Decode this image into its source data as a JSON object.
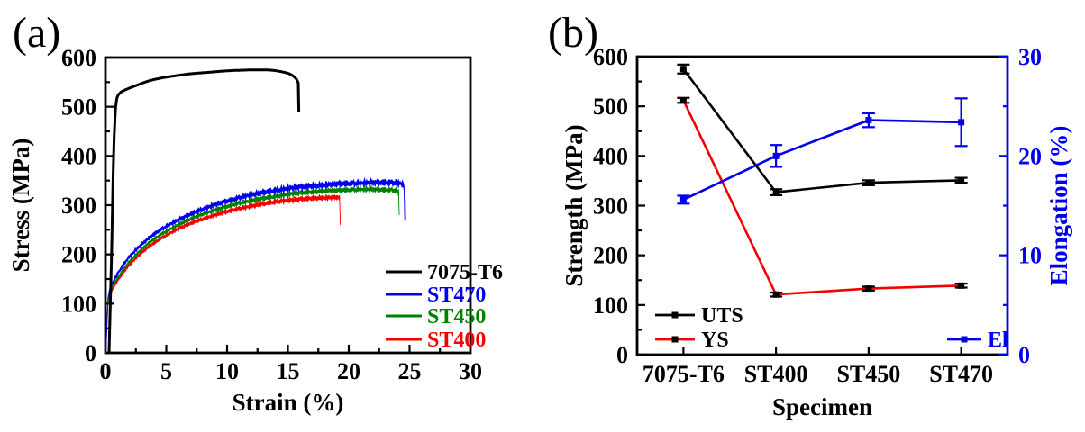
{
  "figure": {
    "background": "#ffffff",
    "colors": {
      "black": "#000000",
      "blue": "#0000ee",
      "green": "#008000",
      "red": "#f40000"
    }
  },
  "chart_data": [
    {
      "id": "a",
      "type": "line",
      "panel_label": "(a)",
      "xlabel": "Strain (%)",
      "ylabel": "Stress (MPa)",
      "xlim": [
        0,
        30
      ],
      "ylim": [
        0,
        600
      ],
      "xticks": [
        0,
        5,
        10,
        15,
        20,
        25,
        30
      ],
      "yticks": [
        0,
        100,
        200,
        300,
        400,
        500,
        600
      ],
      "x_minor_step": 2.5,
      "y_minor_step": 50,
      "grid": false,
      "legend_position": "lower right",
      "series": [
        {
          "name": "7075-T6",
          "color": "#000000",
          "noise": 0,
          "points": [
            [
              0.3,
              0
            ],
            [
              0.5,
              200
            ],
            [
              0.62,
              350
            ],
            [
              0.72,
              440
            ],
            [
              0.82,
              495
            ],
            [
              0.95,
              518
            ],
            [
              1.2,
              528
            ],
            [
              1.6,
              534
            ],
            [
              2.5,
              543
            ],
            [
              3.5,
              552
            ],
            [
              4.5,
              558
            ],
            [
              5.5,
              562
            ],
            [
              7,
              567
            ],
            [
              8.5,
              570
            ],
            [
              10,
              573
            ],
            [
              11.5,
              574.5
            ],
            [
              12.5,
              575
            ],
            [
              13.5,
              574.5
            ],
            [
              14.3,
              572
            ],
            [
              15,
              568
            ],
            [
              15.4,
              563
            ],
            [
              15.7,
              556
            ],
            [
              15.85,
              548
            ],
            [
              15.9,
              490
            ]
          ]
        },
        {
          "name": "ST470",
          "color": "#0000ee",
          "noise": 8,
          "points": [
            [
              0.05,
              0
            ],
            [
              0.12,
              60
            ],
            [
              0.2,
              110
            ],
            [
              0.35,
              128
            ],
            [
              0.6,
              143
            ],
            [
              1,
              161
            ],
            [
              1.5,
              180
            ],
            [
              2,
              196
            ],
            [
              3,
              221
            ],
            [
              4,
              241
            ],
            [
              5,
              257
            ],
            [
              6,
              270
            ],
            [
              7,
              282
            ],
            [
              8,
              292
            ],
            [
              9,
              301
            ],
            [
              10,
              308
            ],
            [
              11,
              315
            ],
            [
              12,
              321
            ],
            [
              13,
              326
            ],
            [
              14,
              330
            ],
            [
              15,
              334
            ],
            [
              16,
              337
            ],
            [
              17,
              339
            ],
            [
              18,
              341
            ],
            [
              19,
              343
            ],
            [
              20,
              344
            ],
            [
              21,
              345
            ],
            [
              22,
              346
            ],
            [
              23,
              346
            ],
            [
              24,
              345
            ],
            [
              24.4,
              343
            ],
            [
              24.55,
              338
            ],
            [
              24.6,
              270
            ]
          ]
        },
        {
          "name": "ST450",
          "color": "#008000",
          "noise": 6,
          "points": [
            [
              0.05,
              0
            ],
            [
              0.12,
              55
            ],
            [
              0.2,
              103
            ],
            [
              0.35,
              120
            ],
            [
              0.6,
              135
            ],
            [
              1,
              152
            ],
            [
              1.5,
              170
            ],
            [
              2,
              186
            ],
            [
              3,
              211
            ],
            [
              4,
              231
            ],
            [
              5,
              247
            ],
            [
              6,
              260
            ],
            [
              7,
              272
            ],
            [
              8,
              282
            ],
            [
              9,
              290
            ],
            [
              10,
              297
            ],
            [
              11,
              304
            ],
            [
              12,
              309
            ],
            [
              13,
              314
            ],
            [
              14,
              318
            ],
            [
              15,
              322
            ],
            [
              16,
              325
            ],
            [
              17,
              327
            ],
            [
              18,
              329
            ],
            [
              19,
              330
            ],
            [
              20,
              331
            ],
            [
              21,
              332
            ],
            [
              22,
              332
            ],
            [
              23,
              331
            ],
            [
              23.8,
              330
            ],
            [
              24.1,
              326
            ],
            [
              24.15,
              282
            ]
          ]
        },
        {
          "name": "ST400",
          "color": "#f40000",
          "noise": 6,
          "points": [
            [
              0.05,
              0
            ],
            [
              0.12,
              52
            ],
            [
              0.2,
              100
            ],
            [
              0.35,
              116
            ],
            [
              0.6,
              130
            ],
            [
              1,
              147
            ],
            [
              1.5,
              164
            ],
            [
              2,
              180
            ],
            [
              3,
              204
            ],
            [
              4,
              223
            ],
            [
              5,
              239
            ],
            [
              6,
              252
            ],
            [
              7,
              263
            ],
            [
              8,
              272
            ],
            [
              9,
              280
            ],
            [
              10,
              287
            ],
            [
              11,
              293
            ],
            [
              12,
              298
            ],
            [
              13,
              303
            ],
            [
              14,
              307
            ],
            [
              15,
              310
            ],
            [
              16,
              312
            ],
            [
              17,
              314
            ],
            [
              18,
              315
            ],
            [
              19,
              316
            ],
            [
              19.25,
              313
            ],
            [
              19.3,
              265
            ]
          ]
        }
      ]
    },
    {
      "id": "b",
      "type": "line",
      "panel_label": "(b)",
      "xlabel": "Specimen",
      "ylabel_left": "Strength (MPa)",
      "ylabel_right": "Elongation (%)",
      "categories": [
        "7075-T6",
        "ST400",
        "ST450",
        "ST470"
      ],
      "ylim_left": [
        0,
        600
      ],
      "yticks_left": [
        0,
        100,
        200,
        300,
        400,
        500,
        600
      ],
      "y_left_minor_step": 50,
      "ylim_right": [
        0,
        30
      ],
      "yticks_right": [
        0,
        10,
        20,
        30
      ],
      "y_right_minor_step": 5,
      "axis_color_left": "#000000",
      "axis_color_right": "#0000ee",
      "grid": false,
      "series": [
        {
          "name": "UTS",
          "axis": "left",
          "color": "#000000",
          "marker_color": "#000000",
          "values": [
            575,
            327,
            346,
            351
          ],
          "errors": [
            9,
            6,
            5,
            5
          ]
        },
        {
          "name": "YS",
          "axis": "left",
          "color": "#f40000",
          "marker_color": "#000000",
          "values": [
            512,
            121,
            133,
            139
          ],
          "errors": [
            5,
            4,
            4,
            4
          ]
        },
        {
          "name": "El",
          "axis": "right",
          "color": "#0000ee",
          "marker_color": "#0000ee",
          "values": [
            15.6,
            20.0,
            23.6,
            23.4
          ],
          "errors": [
            0.4,
            1.1,
            0.7,
            2.4
          ]
        }
      ],
      "legend_left": [
        "UTS",
        "YS"
      ],
      "legend_right": [
        "El"
      ]
    }
  ]
}
